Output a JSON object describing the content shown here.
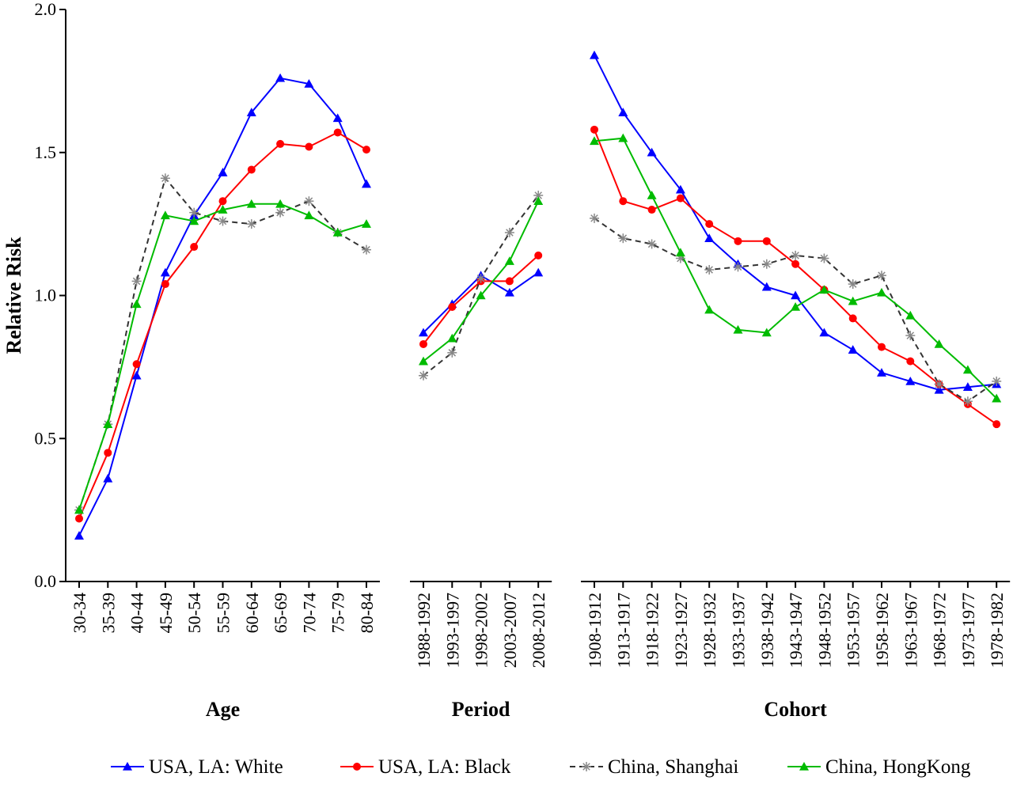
{
  "chart_data": {
    "type": "line",
    "ylabel": "Relative Risk",
    "ylim": [
      0.0,
      2.0
    ],
    "yticks": [
      "0.0",
      "0.5",
      "1.0",
      "1.5",
      "2.0"
    ],
    "groups": [
      {
        "title": "Age",
        "categories": [
          "30-34",
          "35-39",
          "40-44",
          "45-49",
          "50-54",
          "55-59",
          "60-64",
          "65-69",
          "70-74",
          "75-79",
          "80-84"
        ]
      },
      {
        "title": "Period",
        "categories": [
          "1988-1992",
          "1993-1997",
          "1998-2002",
          "2003-2007",
          "2008-2012"
        ]
      },
      {
        "title": "Cohort",
        "categories": [
          "1908-1912",
          "1913-1917",
          "1918-1922",
          "1923-1927",
          "1928-1932",
          "1933-1937",
          "1938-1942",
          "1943-1947",
          "1948-1952",
          "1953-1957",
          "1958-1962",
          "1963-1967",
          "1968-1972",
          "1973-1977",
          "1978-1982"
        ]
      }
    ],
    "series": [
      {
        "name": "USA, LA: White",
        "color": "#0000ff",
        "marker": "triangle",
        "dash": "solid",
        "values": [
          [
            0.16,
            0.36,
            0.72,
            1.08,
            1.28,
            1.43,
            1.64,
            1.76,
            1.74,
            1.62,
            1.39
          ],
          [
            0.87,
            0.97,
            1.07,
            1.01,
            1.08
          ],
          [
            1.84,
            1.64,
            1.5,
            1.37,
            1.2,
            1.11,
            1.03,
            1.0,
            0.87,
            0.81,
            0.73,
            0.7,
            0.67,
            0.68,
            0.69
          ]
        ]
      },
      {
        "name": "USA, LA: Black",
        "color": "#ff0000",
        "marker": "circle",
        "dash": "solid",
        "values": [
          [
            0.22,
            0.45,
            0.76,
            1.04,
            1.17,
            1.33,
            1.44,
            1.53,
            1.52,
            1.57,
            1.51
          ],
          [
            0.83,
            0.96,
            1.05,
            1.05,
            1.14
          ],
          [
            1.58,
            1.33,
            1.3,
            1.34,
            1.25,
            1.19,
            1.19,
            1.11,
            1.02,
            0.92,
            0.82,
            0.77,
            0.69,
            0.62,
            0.55
          ]
        ]
      },
      {
        "name": "China, Shanghai",
        "color": "#333333",
        "marker": "asterisk",
        "dash": "dashed",
        "values": [
          [
            0.25,
            0.55,
            1.05,
            1.41,
            1.29,
            1.26,
            1.25,
            1.29,
            1.33,
            1.22,
            1.16
          ],
          [
            0.72,
            0.8,
            1.06,
            1.22,
            1.35
          ],
          [
            1.27,
            1.2,
            1.18,
            1.13,
            1.09,
            1.1,
            1.11,
            1.14,
            1.13,
            1.04,
            1.07,
            0.86,
            0.69,
            0.63,
            0.7
          ]
        ]
      },
      {
        "name": "China, HongKong",
        "color": "#00bb00",
        "marker": "triangle",
        "dash": "solid",
        "values": [
          [
            0.25,
            0.55,
            0.97,
            1.28,
            1.26,
            1.3,
            1.32,
            1.32,
            1.28,
            1.22,
            1.25
          ],
          [
            0.77,
            0.85,
            1.0,
            1.12,
            1.33
          ],
          [
            1.54,
            1.55,
            1.35,
            1.15,
            0.95,
            0.88,
            0.87,
            0.96,
            1.02,
            0.98,
            1.01,
            0.93,
            0.83,
            0.74,
            0.64
          ]
        ]
      }
    ]
  }
}
